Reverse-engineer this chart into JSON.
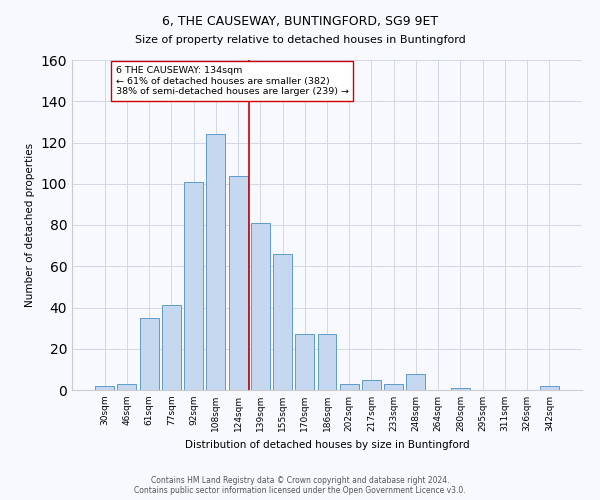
{
  "title": "6, THE CAUSEWAY, BUNTINGFORD, SG9 9ET",
  "subtitle": "Size of property relative to detached houses in Buntingford",
  "xlabel": "Distribution of detached houses by size in Buntingford",
  "ylabel": "Number of detached properties",
  "categories": [
    "30sqm",
    "46sqm",
    "61sqm",
    "77sqm",
    "92sqm",
    "108sqm",
    "124sqm",
    "139sqm",
    "155sqm",
    "170sqm",
    "186sqm",
    "202sqm",
    "217sqm",
    "233sqm",
    "248sqm",
    "264sqm",
    "280sqm",
    "295sqm",
    "311sqm",
    "326sqm",
    "342sqm"
  ],
  "values": [
    2,
    3,
    35,
    41,
    101,
    124,
    104,
    81,
    66,
    27,
    27,
    3,
    5,
    3,
    8,
    0,
    1,
    0,
    0,
    0,
    2
  ],
  "bar_color": "#c5d8f0",
  "bar_edge_color": "#4a90c4",
  "vline_color": "#cc0000",
  "vline_x_index": 6.5,
  "annotation_text": "6 THE CAUSEWAY: 134sqm\n← 61% of detached houses are smaller (382)\n38% of semi-detached houses are larger (239) →",
  "annotation_box_color": "#ffffff",
  "annotation_box_edge": "#cc0000",
  "footer": "Contains HM Land Registry data © Crown copyright and database right 2024.\nContains public sector information licensed under the Open Government Licence v3.0.",
  "ylim": [
    0,
    160
  ],
  "grid_color": "#d0d8e8",
  "background_color": "#f8f9ff",
  "title_fontsize": 9,
  "subtitle_fontsize": 8,
  "axis_label_fontsize": 7.5,
  "tick_fontsize": 6.5,
  "annotation_fontsize": 6.8,
  "footer_fontsize": 5.5
}
